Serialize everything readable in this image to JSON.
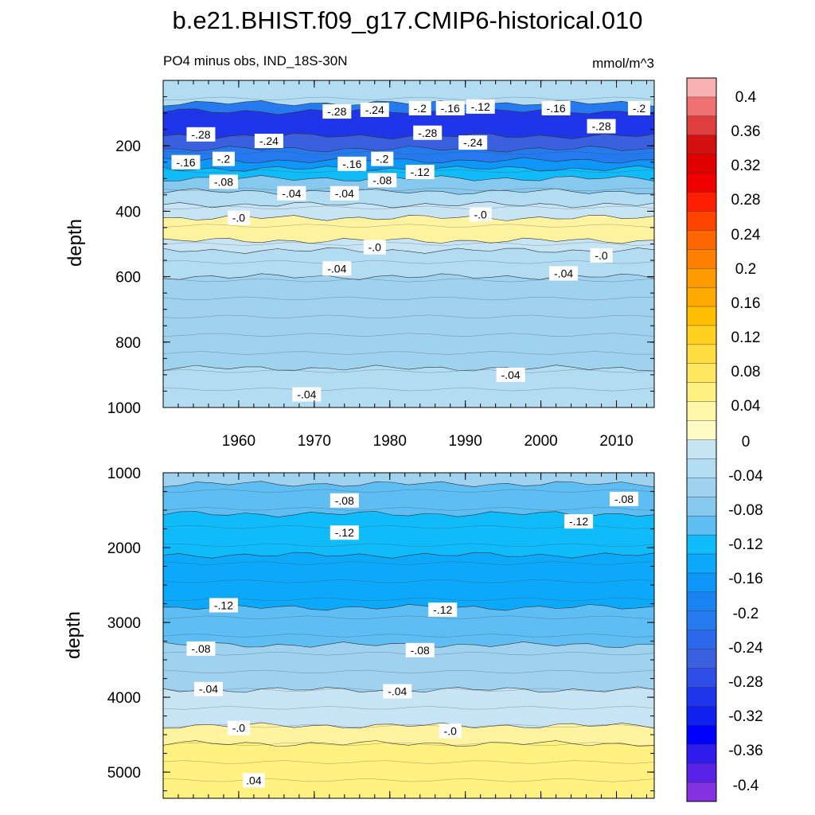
{
  "chart_data": [
    {
      "type": "heatmap",
      "title": "b.e21.BHIST.f09_g17.CMIP6-historical.010",
      "subtitle_left": "PO4 minus obs, IND_18S-30N",
      "subtitle_right": "mmol/m^3",
      "xlabel": "",
      "ylabel": "depth",
      "xlim": [
        1950,
        2015
      ],
      "ylim": [
        1000,
        0
      ],
      "xticks": [
        1960,
        1970,
        1980,
        1990,
        2000,
        2010
      ],
      "xtick_labels": [
        "1960",
        "1970",
        "1980",
        "1990",
        "2000",
        "2010"
      ],
      "yticks": [
        200,
        400,
        600,
        800,
        1000
      ],
      "ytick_labels": [
        "200",
        "400",
        "600",
        "800",
        "1000"
      ],
      "bands": [
        {
          "top": 0,
          "bottom": 70,
          "value": -0.04
        },
        {
          "top": 70,
          "bottom": 95,
          "value": -0.2
        },
        {
          "top": 95,
          "bottom": 170,
          "value": -0.28
        },
        {
          "top": 170,
          "bottom": 210,
          "value": -0.24
        },
        {
          "top": 210,
          "bottom": 245,
          "value": -0.2
        },
        {
          "top": 245,
          "bottom": 270,
          "value": -0.16
        },
        {
          "top": 270,
          "bottom": 300,
          "value": -0.12
        },
        {
          "top": 300,
          "bottom": 340,
          "value": -0.08
        },
        {
          "top": 340,
          "bottom": 380,
          "value": -0.04
        },
        {
          "top": 380,
          "bottom": 420,
          "value": -0.02
        },
        {
          "top": 420,
          "bottom": 490,
          "value": 0.02
        },
        {
          "top": 490,
          "bottom": 520,
          "value": -0.02
        },
        {
          "top": 520,
          "bottom": 600,
          "value": -0.04
        },
        {
          "top": 600,
          "bottom": 880,
          "value": -0.06
        },
        {
          "top": 880,
          "bottom": 1000,
          "value": -0.04
        }
      ],
      "contour_labels": [
        {
          "text": "-.28",
          "year": 1973,
          "depth": 95
        },
        {
          "text": "-.24",
          "year": 1978,
          "depth": 90
        },
        {
          "text": "-.2",
          "year": 1984,
          "depth": 85
        },
        {
          "text": "-.16",
          "year": 1988,
          "depth": 85
        },
        {
          "text": "-.12",
          "year": 1992,
          "depth": 80
        },
        {
          "text": "-.16",
          "year": 2002,
          "depth": 85
        },
        {
          "text": "-.2",
          "year": 2013,
          "depth": 85
        },
        {
          "text": "-.28",
          "year": 1955,
          "depth": 165
        },
        {
          "text": "-.24",
          "year": 1964,
          "depth": 185
        },
        {
          "text": "-.28",
          "year": 1985,
          "depth": 160
        },
        {
          "text": "-.24",
          "year": 1991,
          "depth": 190
        },
        {
          "text": "-.28",
          "year": 2008,
          "depth": 140
        },
        {
          "text": "-.16",
          "year": 1953,
          "depth": 250
        },
        {
          "text": "-.2",
          "year": 1958,
          "depth": 240
        },
        {
          "text": "-.16",
          "year": 1975,
          "depth": 255
        },
        {
          "text": "-.2",
          "year": 1979,
          "depth": 240
        },
        {
          "text": "-.12",
          "year": 1984,
          "depth": 280
        },
        {
          "text": "-.08",
          "year": 1958,
          "depth": 310
        },
        {
          "text": "-.08",
          "year": 1979,
          "depth": 305
        },
        {
          "text": "-.04",
          "year": 1967,
          "depth": 345
        },
        {
          "text": "-.04",
          "year": 1974,
          "depth": 345
        },
        {
          "text": "-.0",
          "year": 1960,
          "depth": 420
        },
        {
          "text": "-.0",
          "year": 1992,
          "depth": 410
        },
        {
          "text": "-.0",
          "year": 1978,
          "depth": 510
        },
        {
          "text": "-.0",
          "year": 2008,
          "depth": 535
        },
        {
          "text": "-.04",
          "year": 1973,
          "depth": 575
        },
        {
          "text": "-.04",
          "year": 2003,
          "depth": 590
        },
        {
          "text": "-.04",
          "year": 1996,
          "depth": 900
        },
        {
          "text": "-.04",
          "year": 1969,
          "depth": 960
        }
      ]
    },
    {
      "type": "heatmap",
      "xlabel": "",
      "ylabel": "depth",
      "xlim": [
        1950,
        2015
      ],
      "ylim": [
        5350,
        1000
      ],
      "yticks": [
        1000,
        2000,
        3000,
        4000,
        5000
      ],
      "ytick_labels": [
        "1000",
        "2000",
        "3000",
        "4000",
        "5000"
      ],
      "bands": [
        {
          "top": 1000,
          "bottom": 1150,
          "value": -0.06
        },
        {
          "top": 1150,
          "bottom": 1550,
          "value": -0.1
        },
        {
          "top": 1550,
          "bottom": 2100,
          "value": -0.13
        },
        {
          "top": 2100,
          "bottom": 2800,
          "value": -0.15
        },
        {
          "top": 2800,
          "bottom": 3300,
          "value": -0.11
        },
        {
          "top": 3300,
          "bottom": 3900,
          "value": -0.07
        },
        {
          "top": 3900,
          "bottom": 4380,
          "value": -0.03
        },
        {
          "top": 4380,
          "bottom": 4620,
          "value": 0.01
        },
        {
          "top": 4620,
          "bottom": 5350,
          "value": 0.03
        }
      ],
      "contour_labels": [
        {
          "text": "-.08",
          "year": 1974,
          "depth": 1370
        },
        {
          "text": "-.08",
          "year": 2011,
          "depth": 1350
        },
        {
          "text": "-.12",
          "year": 1974,
          "depth": 1800
        },
        {
          "text": "-.12",
          "year": 2005,
          "depth": 1650
        },
        {
          "text": "-.12",
          "year": 1958,
          "depth": 2770
        },
        {
          "text": "-.12",
          "year": 1987,
          "depth": 2830
        },
        {
          "text": "-.08",
          "year": 1955,
          "depth": 3350
        },
        {
          "text": "-.08",
          "year": 1984,
          "depth": 3370
        },
        {
          "text": "-.04",
          "year": 1956,
          "depth": 3890
        },
        {
          "text": "-.04",
          "year": 1981,
          "depth": 3920
        },
        {
          "text": "-.0",
          "year": 1960,
          "depth": 4410
        },
        {
          "text": "-.0",
          "year": 1988,
          "depth": 4450
        },
        {
          "text": ".04",
          "year": 1962,
          "depth": 5110
        }
      ]
    },
    {
      "type": "colorbar",
      "levels": [
        0.4,
        0.36,
        0.32,
        0.28,
        0.24,
        0.2,
        0.16,
        0.12,
        0.08,
        0.04,
        0,
        -0.04,
        -0.08,
        -0.12,
        -0.16,
        -0.2,
        -0.24,
        -0.28,
        -0.32,
        -0.36,
        -0.4
      ],
      "labels": [
        "0.4",
        "0.36",
        "0.32",
        "0.28",
        "0.24",
        "0.2",
        "0.16",
        "0.12",
        "0.08",
        "0.04",
        "0",
        "-0.04",
        "-0.08",
        "-0.12",
        "-0.16",
        "-0.2",
        "-0.24",
        "-0.28",
        "-0.32",
        "-0.36",
        "-0.4"
      ],
      "colors": [
        "#f8b1b1",
        "#ef7070",
        "#e03e3e",
        "#d40f0f",
        "#e10000",
        "#f10000",
        "#ff1f00",
        "#ff4400",
        "#ff6600",
        "#ff8000",
        "#ff9b00",
        "#ffa800",
        "#ffbf00",
        "#ffd020",
        "#ffdd40",
        "#ffe860",
        "#fff180",
        "#fff7a8",
        "#fffbc4",
        "#c6e4f4",
        "#b2dcf2",
        "#9ed2ef",
        "#86c8ee",
        "#5ebdf2",
        "#10bbfa",
        "#0ca9fa",
        "#0e97f8",
        "#1a85f2",
        "#257aef",
        "#2a68ec",
        "#3a60e0",
        "#2f4ee8",
        "#1f35ec",
        "#1020ef",
        "#0000ff",
        "#2e1cec",
        "#5a22e6",
        "#8432e0"
      ]
    }
  ]
}
